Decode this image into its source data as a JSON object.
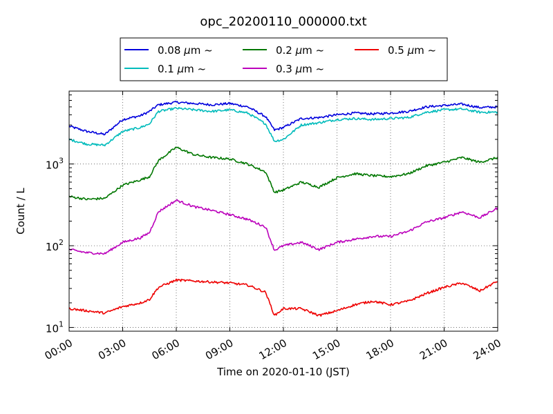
{
  "chart_data": {
    "type": "line",
    "title": "opc_20200110_000000.txt",
    "xlabel": "Time on 2020-01-10 (JST)",
    "ylabel": "Count / L",
    "xlim": [
      "00:00",
      "24:00"
    ],
    "ylim": [
      9,
      7800
    ],
    "yscale": "log",
    "grid": true,
    "legend_position": "top-center",
    "x_ticks": [
      "00:00",
      "03:00",
      "06:00",
      "09:00",
      "12:00",
      "15:00",
      "18:00",
      "21:00",
      "24:00"
    ],
    "y_ticks": [
      {
        "value": 10,
        "base": "10",
        "exp": "1"
      },
      {
        "value": 100,
        "base": "10",
        "exp": "2"
      },
      {
        "value": 1000,
        "base": "10",
        "exp": "3"
      }
    ],
    "x": [
      0,
      1,
      2,
      3,
      4,
      4.5,
      5,
      6,
      7,
      8,
      9,
      10,
      11,
      11.5,
      12,
      13,
      14,
      15,
      16,
      17,
      18,
      19,
      20,
      21,
      22,
      23,
      24
    ],
    "series": [
      {
        "name": "0.08 μm ~",
        "label_text": "0.08",
        "color": "#0000dd",
        "values": [
          2900,
          2500,
          2300,
          3500,
          3900,
          4400,
          5300,
          5700,
          5500,
          5300,
          5500,
          5000,
          3800,
          2600,
          2800,
          3600,
          3700,
          4000,
          4200,
          4100,
          4200,
          4400,
          5000,
          5200,
          5400,
          4900,
          5000
        ]
      },
      {
        "name": "0.1 μm ~",
        "label_text": "0.1",
        "color": "#00bbbb",
        "values": [
          2000,
          1750,
          1700,
          2500,
          2800,
          3100,
          4400,
          4800,
          4600,
          4400,
          4600,
          4200,
          3100,
          1900,
          2000,
          3000,
          3200,
          3500,
          3600,
          3500,
          3600,
          3700,
          4300,
          4600,
          4700,
          4300,
          4300
        ]
      },
      {
        "name": "0.2 μm ~",
        "label_text": "0.2",
        "color": "#007700",
        "values": [
          400,
          370,
          380,
          550,
          640,
          700,
          1100,
          1600,
          1300,
          1200,
          1150,
          1000,
          800,
          450,
          480,
          600,
          520,
          680,
          760,
          720,
          700,
          760,
          950,
          1050,
          1200,
          1050,
          1200
        ]
      },
      {
        "name": "0.3 μm ~",
        "label_text": "0.3",
        "color": "#bb00bb",
        "values": [
          90,
          82,
          80,
          110,
          125,
          145,
          260,
          360,
          300,
          270,
          240,
          210,
          170,
          88,
          100,
          110,
          90,
          110,
          120,
          130,
          130,
          150,
          195,
          220,
          260,
          220,
          290
        ]
      },
      {
        "name": "0.5 μm ~",
        "label_text": "0.5",
        "color": "#ee0000",
        "values": [
          17,
          16,
          15,
          18,
          20,
          22,
          31,
          38,
          37,
          36,
          35,
          33,
          27,
          14,
          17,
          17,
          14,
          16,
          19,
          21,
          19,
          21,
          26,
          31,
          35,
          28,
          37
        ]
      }
    ]
  }
}
